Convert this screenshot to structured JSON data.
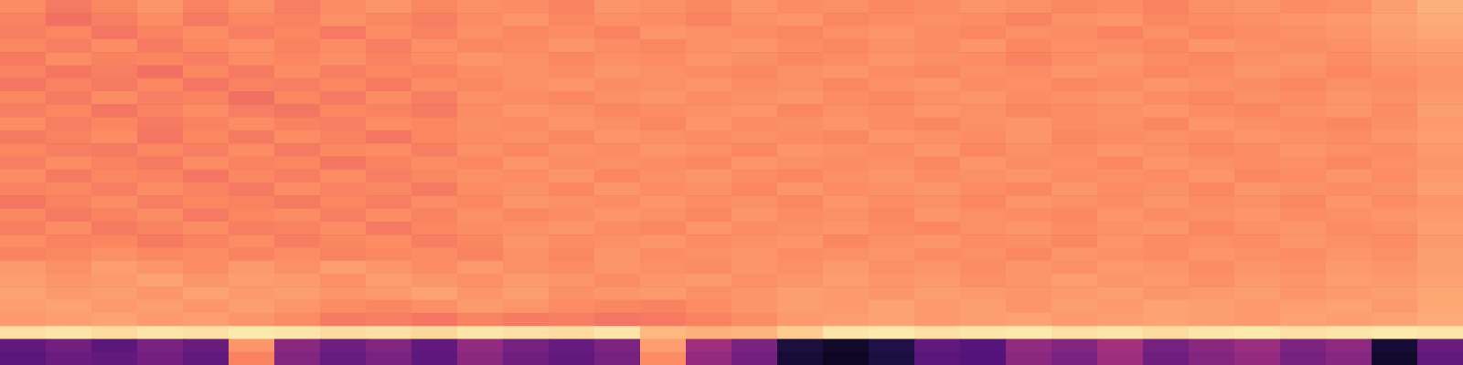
{
  "chart_data": {
    "type": "heatmap",
    "tick_labels": false,
    "zlim": [
      0,
      1
    ],
    "cells": [
      [
        0.76,
        0.72,
        0.75,
        0.78,
        0.74,
        0.77,
        0.73,
        0.76,
        0.78,
        0.75,
        0.77,
        0.76,
        0.74,
        0.78,
        0.77,
        0.75,
        0.78,
        0.76,
        0.77,
        0.75,
        0.76,
        0.78,
        0.77,
        0.75,
        0.76,
        0.74,
        0.77,
        0.78,
        0.76,
        0.77,
        0.8,
        0.84
      ],
      [
        0.74,
        0.7,
        0.73,
        0.76,
        0.72,
        0.75,
        0.74,
        0.77,
        0.75,
        0.73,
        0.76,
        0.78,
        0.75,
        0.77,
        0.76,
        0.74,
        0.77,
        0.78,
        0.75,
        0.76,
        0.77,
        0.76,
        0.74,
        0.77,
        0.78,
        0.75,
        0.76,
        0.77,
        0.78,
        0.79,
        0.81,
        0.83
      ],
      [
        0.73,
        0.75,
        0.71,
        0.74,
        0.76,
        0.73,
        0.75,
        0.72,
        0.76,
        0.74,
        0.77,
        0.75,
        0.76,
        0.74,
        0.78,
        0.77,
        0.76,
        0.75,
        0.77,
        0.78,
        0.76,
        0.75,
        0.77,
        0.76,
        0.74,
        0.77,
        0.75,
        0.76,
        0.77,
        0.78,
        0.8,
        0.82
      ],
      [
        0.75,
        0.73,
        0.76,
        0.72,
        0.75,
        0.77,
        0.74,
        0.76,
        0.73,
        0.77,
        0.75,
        0.76,
        0.78,
        0.76,
        0.75,
        0.77,
        0.78,
        0.76,
        0.75,
        0.77,
        0.76,
        0.78,
        0.75,
        0.77,
        0.76,
        0.75,
        0.78,
        0.77,
        0.76,
        0.77,
        0.79,
        0.8
      ],
      [
        0.72,
        0.76,
        0.74,
        0.75,
        0.73,
        0.76,
        0.75,
        0.77,
        0.74,
        0.76,
        0.78,
        0.77,
        0.75,
        0.77,
        0.76,
        0.78,
        0.77,
        0.75,
        0.76,
        0.78,
        0.77,
        0.76,
        0.74,
        0.76,
        0.78,
        0.76,
        0.75,
        0.77,
        0.78,
        0.76,
        0.78,
        0.79
      ],
      [
        0.74,
        0.71,
        0.73,
        0.7,
        0.75,
        0.72,
        0.76,
        0.73,
        0.75,
        0.74,
        0.76,
        0.77,
        0.76,
        0.78,
        0.77,
        0.76,
        0.75,
        0.77,
        0.78,
        0.76,
        0.75,
        0.77,
        0.76,
        0.78,
        0.77,
        0.75,
        0.76,
        0.78,
        0.77,
        0.75,
        0.77,
        0.78
      ],
      [
        0.71,
        0.74,
        0.72,
        0.75,
        0.71,
        0.74,
        0.73,
        0.75,
        0.72,
        0.76,
        0.75,
        0.77,
        0.78,
        0.76,
        0.77,
        0.78,
        0.76,
        0.77,
        0.75,
        0.77,
        0.78,
        0.76,
        0.77,
        0.75,
        0.76,
        0.78,
        0.77,
        0.76,
        0.75,
        0.77,
        0.76,
        0.78
      ],
      [
        0.75,
        0.72,
        0.76,
        0.73,
        0.74,
        0.7,
        0.75,
        0.72,
        0.76,
        0.73,
        0.77,
        0.76,
        0.75,
        0.77,
        0.78,
        0.76,
        0.77,
        0.78,
        0.76,
        0.75,
        0.77,
        0.78,
        0.76,
        0.77,
        0.78,
        0.76,
        0.75,
        0.77,
        0.76,
        0.78,
        0.77,
        0.79
      ],
      [
        0.73,
        0.75,
        0.71,
        0.74,
        0.76,
        0.73,
        0.71,
        0.75,
        0.74,
        0.72,
        0.76,
        0.78,
        0.77,
        0.75,
        0.76,
        0.77,
        0.78,
        0.75,
        0.77,
        0.76,
        0.78,
        0.77,
        0.75,
        0.76,
        0.77,
        0.78,
        0.76,
        0.75,
        0.77,
        0.78,
        0.76,
        0.8
      ],
      [
        0.76,
        0.73,
        0.75,
        0.72,
        0.74,
        0.76,
        0.74,
        0.73,
        0.76,
        0.75,
        0.77,
        0.76,
        0.78,
        0.77,
        0.75,
        0.78,
        0.76,
        0.77,
        0.78,
        0.76,
        0.75,
        0.77,
        0.78,
        0.76,
        0.77,
        0.75,
        0.78,
        0.77,
        0.76,
        0.75,
        0.77,
        0.79
      ],
      [
        0.72,
        0.74,
        0.76,
        0.71,
        0.75,
        0.72,
        0.76,
        0.74,
        0.71,
        0.75,
        0.76,
        0.77,
        0.75,
        0.78,
        0.77,
        0.76,
        0.77,
        0.76,
        0.75,
        0.78,
        0.77,
        0.76,
        0.78,
        0.75,
        0.76,
        0.77,
        0.76,
        0.78,
        0.77,
        0.76,
        0.78,
        0.8
      ],
      [
        0.75,
        0.73,
        0.72,
        0.75,
        0.73,
        0.76,
        0.72,
        0.75,
        0.76,
        0.73,
        0.77,
        0.75,
        0.77,
        0.76,
        0.78,
        0.77,
        0.75,
        0.78,
        0.77,
        0.76,
        0.78,
        0.75,
        0.77,
        0.76,
        0.78,
        0.77,
        0.75,
        0.76,
        0.78,
        0.77,
        0.76,
        0.79
      ],
      [
        0.73,
        0.76,
        0.74,
        0.72,
        0.76,
        0.74,
        0.75,
        0.71,
        0.74,
        0.76,
        0.75,
        0.78,
        0.76,
        0.77,
        0.76,
        0.75,
        0.78,
        0.77,
        0.76,
        0.77,
        0.75,
        0.78,
        0.76,
        0.77,
        0.75,
        0.78,
        0.77,
        0.76,
        0.77,
        0.75,
        0.77,
        0.78
      ],
      [
        0.76,
        0.72,
        0.75,
        0.74,
        0.71,
        0.75,
        0.73,
        0.76,
        0.73,
        0.75,
        0.77,
        0.76,
        0.78,
        0.75,
        0.77,
        0.78,
        0.76,
        0.75,
        0.77,
        0.78,
        0.76,
        0.77,
        0.78,
        0.76,
        0.77,
        0.76,
        0.78,
        0.75,
        0.76,
        0.78,
        0.76,
        0.79
      ],
      [
        0.74,
        0.75,
        0.73,
        0.76,
        0.74,
        0.72,
        0.76,
        0.74,
        0.75,
        0.72,
        0.76,
        0.77,
        0.75,
        0.78,
        0.76,
        0.77,
        0.75,
        0.78,
        0.76,
        0.77,
        0.78,
        0.76,
        0.75,
        0.78,
        0.76,
        0.77,
        0.75,
        0.78,
        0.77,
        0.76,
        0.77,
        0.8
      ],
      [
        0.71,
        0.74,
        0.76,
        0.73,
        0.75,
        0.74,
        0.72,
        0.75,
        0.73,
        0.76,
        0.75,
        0.78,
        0.77,
        0.76,
        0.78,
        0.76,
        0.77,
        0.75,
        0.78,
        0.76,
        0.77,
        0.75,
        0.78,
        0.77,
        0.76,
        0.78,
        0.76,
        0.77,
        0.75,
        0.78,
        0.76,
        0.78
      ],
      [
        0.75,
        0.72,
        0.74,
        0.76,
        0.72,
        0.75,
        0.76,
        0.73,
        0.76,
        0.74,
        0.77,
        0.75,
        0.76,
        0.78,
        0.77,
        0.75,
        0.78,
        0.76,
        0.77,
        0.75,
        0.78,
        0.77,
        0.76,
        0.75,
        0.78,
        0.76,
        0.77,
        0.78,
        0.76,
        0.77,
        0.78,
        0.79
      ],
      [
        0.73,
        0.76,
        0.72,
        0.74,
        0.76,
        0.73,
        0.74,
        0.76,
        0.72,
        0.75,
        0.76,
        0.77,
        0.78,
        0.76,
        0.75,
        0.78,
        0.76,
        0.77,
        0.78,
        0.76,
        0.75,
        0.77,
        0.78,
        0.76,
        0.77,
        0.78,
        0.75,
        0.77,
        0.78,
        0.76,
        0.77,
        0.8
      ],
      [
        0.76,
        0.74,
        0.75,
        0.72,
        0.74,
        0.76,
        0.73,
        0.75,
        0.76,
        0.73,
        0.75,
        0.78,
        0.76,
        0.77,
        0.78,
        0.76,
        0.77,
        0.78,
        0.75,
        0.77,
        0.78,
        0.76,
        0.77,
        0.75,
        0.78,
        0.76,
        0.77,
        0.76,
        0.78,
        0.77,
        0.76,
        0.79
      ],
      [
        0.74,
        0.75,
        0.77,
        0.75,
        0.76,
        0.74,
        0.76,
        0.74,
        0.75,
        0.76,
        0.74,
        0.77,
        0.75,
        0.78,
        0.76,
        0.77,
        0.78,
        0.76,
        0.77,
        0.78,
        0.76,
        0.77,
        0.75,
        0.78,
        0.77,
        0.76,
        0.78,
        0.77,
        0.76,
        0.78,
        0.77,
        0.8
      ],
      [
        0.79,
        0.77,
        0.8,
        0.78,
        0.76,
        0.79,
        0.77,
        0.8,
        0.78,
        0.76,
        0.79,
        0.77,
        0.76,
        0.78,
        0.77,
        0.76,
        0.78,
        0.77,
        0.79,
        0.77,
        0.78,
        0.76,
        0.78,
        0.77,
        0.79,
        0.78,
        0.76,
        0.78,
        0.77,
        0.79,
        0.78,
        0.8
      ],
      [
        0.8,
        0.78,
        0.79,
        0.81,
        0.78,
        0.8,
        0.79,
        0.77,
        0.8,
        0.78,
        0.77,
        0.79,
        0.78,
        0.76,
        0.78,
        0.79,
        0.77,
        0.78,
        0.8,
        0.78,
        0.79,
        0.77,
        0.78,
        0.8,
        0.78,
        0.79,
        0.77,
        0.79,
        0.78,
        0.8,
        0.79,
        0.81
      ],
      [
        0.81,
        0.79,
        0.8,
        0.78,
        0.81,
        0.79,
        0.8,
        0.78,
        0.79,
        0.81,
        0.78,
        0.8,
        0.77,
        0.78,
        0.79,
        0.77,
        0.78,
        0.8,
        0.79,
        0.78,
        0.8,
        0.79,
        0.78,
        0.79,
        0.8,
        0.78,
        0.79,
        0.8,
        0.78,
        0.79,
        0.8,
        0.82
      ],
      [
        0.8,
        0.81,
        0.79,
        0.8,
        0.78,
        0.8,
        0.78,
        0.76,
        0.75,
        0.77,
        0.79,
        0.78,
        0.76,
        0.75,
        0.74,
        0.76,
        0.78,
        0.8,
        0.79,
        0.81,
        0.79,
        0.8,
        0.78,
        0.8,
        0.79,
        0.81,
        0.8,
        0.79,
        0.8,
        0.81,
        0.79,
        0.82
      ],
      [
        0.79,
        0.8,
        0.81,
        0.79,
        0.8,
        0.78,
        0.76,
        0.72,
        0.73,
        0.71,
        0.74,
        0.72,
        0.73,
        0.71,
        0.72,
        0.74,
        0.76,
        0.79,
        0.8,
        0.81,
        0.79,
        0.8,
        0.81,
        0.79,
        0.8,
        0.81,
        0.8,
        0.79,
        0.81,
        0.8,
        0.81,
        0.83
      ],
      [
        0.94,
        0.95,
        0.93,
        0.95,
        0.94,
        0.96,
        0.95,
        0.93,
        0.94,
        0.92,
        0.95,
        0.94,
        0.93,
        0.95,
        0.86,
        0.84,
        0.85,
        0.9,
        0.95,
        0.96,
        0.94,
        0.95,
        0.96,
        0.94,
        0.95,
        0.93,
        0.95,
        0.96,
        0.94,
        0.95,
        0.96,
        0.95
      ],
      [
        0.3,
        0.34,
        0.28,
        0.36,
        0.32,
        0.78,
        0.4,
        0.33,
        0.38,
        0.3,
        0.42,
        0.35,
        0.31,
        0.37,
        0.8,
        0.45,
        0.36,
        0.12,
        0.08,
        0.14,
        0.3,
        0.27,
        0.42,
        0.38,
        0.46,
        0.35,
        0.4,
        0.44,
        0.37,
        0.41,
        0.1,
        0.32
      ],
      [
        0.28,
        0.32,
        0.3,
        0.34,
        0.3,
        0.74,
        0.38,
        0.31,
        0.36,
        0.29,
        0.4,
        0.33,
        0.3,
        0.35,
        0.76,
        0.42,
        0.34,
        0.1,
        0.06,
        0.12,
        0.28,
        0.26,
        0.4,
        0.36,
        0.44,
        0.33,
        0.38,
        0.42,
        0.35,
        0.39,
        0.08,
        0.3
      ]
    ]
  }
}
